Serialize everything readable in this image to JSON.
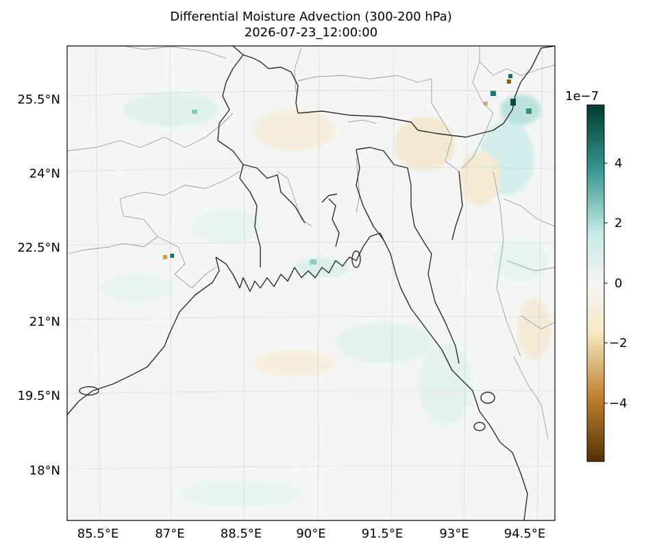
{
  "title": "Differential Moisture Advection (300-200 hPa)",
  "subtitle": "2026-07-23_12:00:00",
  "map": {
    "lon_ticks": [
      "85.5°E",
      "87°E",
      "88.5°E",
      "90°E",
      "91.5°E",
      "93°E",
      "94.5°E"
    ],
    "lat_ticks": [
      "25.5°N",
      "24°N",
      "22.5°N",
      "21°N",
      "19.5°N",
      "18°N"
    ]
  },
  "colorbar": {
    "exponent_label": "1e−7",
    "tick_labels": [
      "4",
      "2",
      "0",
      "−2",
      "−4"
    ],
    "colors": [
      "#543005",
      "#bf812d",
      "#f6e8c3",
      "#f5f5f5",
      "#c7eae5",
      "#35978f",
      "#003c30"
    ]
  }
}
